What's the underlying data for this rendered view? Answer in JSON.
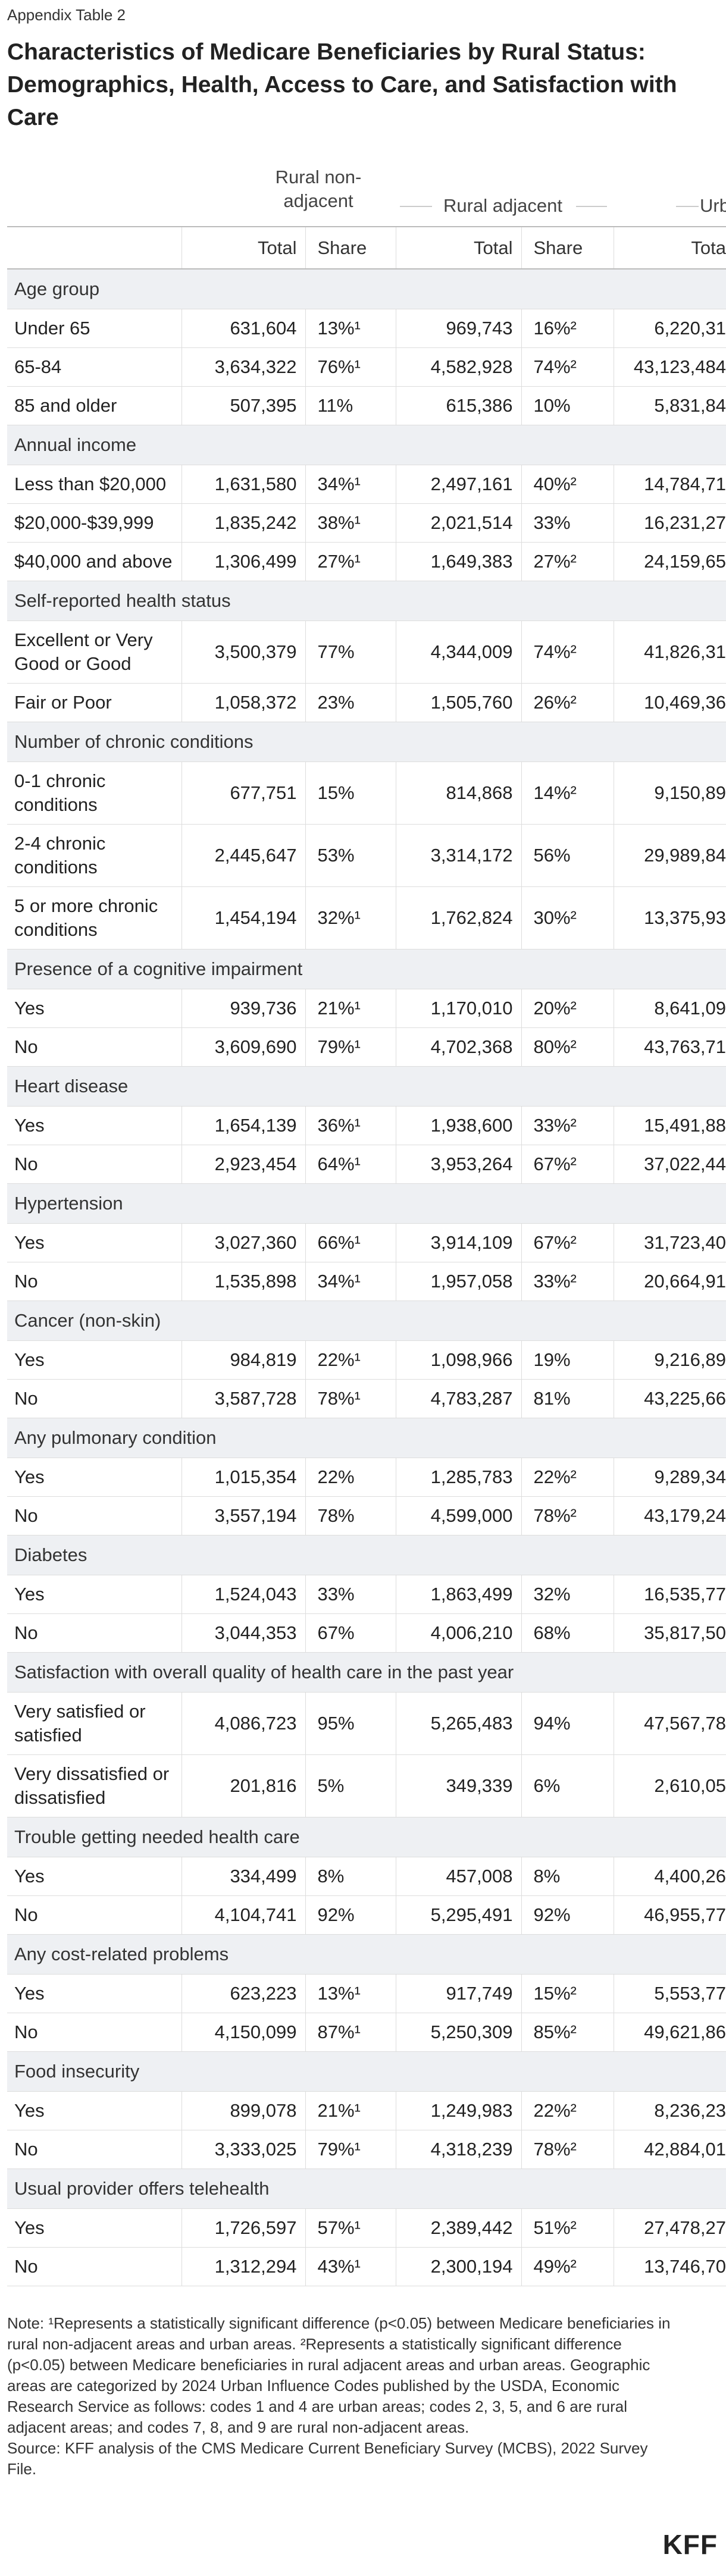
{
  "header": {
    "eyebrow": "Appendix Table 2",
    "title": "Characteristics of Medicare Beneficiaries by Rural Status: Demographics, Health, Access to Care, and Satisfaction with Care"
  },
  "table": {
    "groups": [
      "Rural non-adjacent",
      "Rural adjacent",
      "Urb"
    ],
    "columns": [
      "Total",
      "Share",
      "Total",
      "Share",
      "Tota"
    ],
    "sections": [
      {
        "title": "Age group",
        "rows": [
          [
            "Under 65",
            "631,604",
            "13%¹",
            "969,743",
            "16%²",
            "6,220,31"
          ],
          [
            "65-84",
            "3,634,322",
            "76%¹",
            "4,582,928",
            "74%²",
            "43,123,484"
          ],
          [
            "85 and older",
            "507,395",
            "11%",
            "615,386",
            "10%",
            "5,831,84"
          ]
        ]
      },
      {
        "title": "Annual income",
        "rows": [
          [
            "Less than $20,000",
            "1,631,580",
            "34%¹",
            "2,497,161",
            "40%²",
            "14,784,71"
          ],
          [
            "$20,000-$39,999",
            "1,835,242",
            "38%¹",
            "2,021,514",
            "33%",
            "16,231,27"
          ],
          [
            "$40,000 and above",
            "1,306,499",
            "27%¹",
            "1,649,383",
            "27%²",
            "24,159,65"
          ]
        ]
      },
      {
        "title": "Self-reported health status",
        "rows": [
          [
            "Excellent or Very Good or Good",
            "3,500,379",
            "77%",
            "4,344,009",
            "74%²",
            "41,826,31"
          ],
          [
            "Fair or Poor",
            "1,058,372",
            "23%",
            "1,505,760",
            "26%²",
            "10,469,36"
          ]
        ]
      },
      {
        "title": "Number of chronic conditions",
        "rows": [
          [
            "0-1 chronic conditions",
            "677,751",
            "15%",
            "814,868",
            "14%²",
            "9,150,89"
          ],
          [
            "2-4 chronic conditions",
            "2,445,647",
            "53%",
            "3,314,172",
            "56%",
            "29,989,84"
          ],
          [
            "5 or more chronic conditions",
            "1,454,194",
            "32%¹",
            "1,762,824",
            "30%²",
            "13,375,93"
          ]
        ]
      },
      {
        "title": "Presence of a cognitive impairment",
        "rows": [
          [
            "Yes",
            "939,736",
            "21%¹",
            "1,170,010",
            "20%²",
            "8,641,09"
          ],
          [
            "No",
            "3,609,690",
            "79%¹",
            "4,702,368",
            "80%²",
            "43,763,71"
          ]
        ]
      },
      {
        "title": "Heart disease",
        "rows": [
          [
            "Yes",
            "1,654,139",
            "36%¹",
            "1,938,600",
            "33%²",
            "15,491,88"
          ],
          [
            "No",
            "2,923,454",
            "64%¹",
            "3,953,264",
            "67%²",
            "37,022,44"
          ]
        ]
      },
      {
        "title": "Hypertension",
        "rows": [
          [
            "Yes",
            "3,027,360",
            "66%¹",
            "3,914,109",
            "67%²",
            "31,723,40"
          ],
          [
            "No",
            "1,535,898",
            "34%¹",
            "1,957,058",
            "33%²",
            "20,664,91"
          ]
        ]
      },
      {
        "title": "Cancer (non-skin)",
        "rows": [
          [
            "Yes",
            "984,819",
            "22%¹",
            "1,098,966",
            "19%",
            "9,216,89"
          ],
          [
            "No",
            "3,587,728",
            "78%¹",
            "4,783,287",
            "81%",
            "43,225,66"
          ]
        ]
      },
      {
        "title": "Any pulmonary condition",
        "rows": [
          [
            "Yes",
            "1,015,354",
            "22%",
            "1,285,783",
            "22%²",
            "9,289,34"
          ],
          [
            "No",
            "3,557,194",
            "78%",
            "4,599,000",
            "78%²",
            "43,179,24"
          ]
        ]
      },
      {
        "title": "Diabetes",
        "rows": [
          [
            "Yes",
            "1,524,043",
            "33%",
            "1,863,499",
            "32%",
            "16,535,77"
          ],
          [
            "No",
            "3,044,353",
            "67%",
            "4,006,210",
            "68%",
            "35,817,50"
          ]
        ]
      },
      {
        "title": "Satisfaction with overall quality of health care in the past year",
        "rows": [
          [
            "Very satisfied or satisfied",
            "4,086,723",
            "95%",
            "5,265,483",
            "94%",
            "47,567,78"
          ],
          [
            "Very dissatisfied or dissatisfied",
            "201,816",
            "5%",
            "349,339",
            "6%",
            "2,610,05"
          ]
        ]
      },
      {
        "title": "Trouble getting needed health care",
        "rows": [
          [
            "Yes",
            "334,499",
            "8%",
            "457,008",
            "8%",
            "4,400,26"
          ],
          [
            "No",
            "4,104,741",
            "92%",
            "5,295,491",
            "92%",
            "46,955,77"
          ]
        ]
      },
      {
        "title": "Any cost-related problems",
        "rows": [
          [
            "Yes",
            "623,223",
            "13%¹",
            "917,749",
            "15%²",
            "5,553,77"
          ],
          [
            "No",
            "4,150,099",
            "87%¹",
            "5,250,309",
            "85%²",
            "49,621,86"
          ]
        ]
      },
      {
        "title": "Food insecurity",
        "rows": [
          [
            "Yes",
            "899,078",
            "21%¹",
            "1,249,983",
            "22%²",
            "8,236,23"
          ],
          [
            "No",
            "3,333,025",
            "79%¹",
            "4,318,239",
            "78%²",
            "42,884,01"
          ]
        ]
      },
      {
        "title": "Usual provider offers telehealth",
        "rows": [
          [
            "Yes",
            "1,726,597",
            "57%¹",
            "2,389,442",
            "51%²",
            "27,478,27"
          ],
          [
            "No",
            "1,312,294",
            "43%¹",
            "2,300,194",
            "49%²",
            "13,746,70"
          ]
        ]
      }
    ]
  },
  "footer": {
    "note": "Note: ¹Represents a statistically significant difference (p<0.05) between Medicare beneficiaries in rural non-adjacent areas and urban areas. ²Represents a statistically significant difference (p<0.05) between Medicare beneficiaries in rural adjacent areas and urban areas. Geographic areas are categorized by 2024 Urban Influence Codes published by the USDA, Economic Research Service as follows: codes 1 and 4 are urban areas; codes 2, 3, 5, and 6 are rural adjacent areas; and codes 7, 8, and 9 are rural non-adjacent areas.",
    "source": "Source: KFF analysis of the CMS Medicare Current Beneficiary Survey (MCBS), 2022 Survey File.",
    "logo": "KFF"
  }
}
